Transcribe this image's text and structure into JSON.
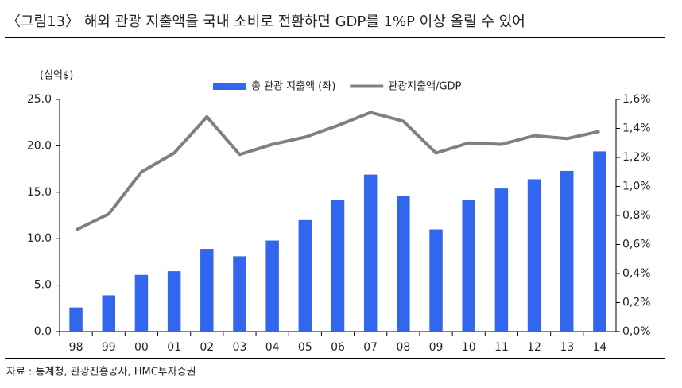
{
  "chart_data": {
    "type": "bar",
    "title": "〈그림13〉 해외 관광 지출액을 국내 소비로 전환하면 GDP를 1%P 이상 올릴 수 있어",
    "y_label": "(십억$)",
    "source": "자료 : 통계청, 관광진흥공사, HMC투자증권",
    "categories": [
      "98",
      "99",
      "00",
      "01",
      "02",
      "03",
      "04",
      "05",
      "06",
      "07",
      "08",
      "09",
      "10",
      "11",
      "12",
      "13",
      "14"
    ],
    "series": [
      {
        "name": "총 관광 지출액 (좌)",
        "color": "#3366ee",
        "type": "bar",
        "values": [
          2.6,
          3.9,
          6.1,
          6.5,
          8.9,
          8.1,
          9.8,
          12.0,
          14.2,
          16.9,
          14.6,
          11.0,
          14.2,
          15.4,
          16.4,
          17.3,
          19.4
        ]
      },
      {
        "name": "관광지출액/GDP",
        "color": "#808080",
        "type": "line",
        "axis": "y2",
        "values": [
          0.7,
          0.81,
          1.1,
          1.23,
          1.48,
          1.22,
          1.29,
          1.34,
          1.42,
          1.51,
          1.45,
          1.23,
          1.3,
          1.29,
          1.35,
          1.33,
          1.38
        ]
      }
    ],
    "ylim": [
      0,
      25
    ],
    "yticks": [
      {
        "value": 0,
        "label": "0.0"
      },
      {
        "value": 5,
        "label": "5.0"
      },
      {
        "value": 10,
        "label": "10.0"
      },
      {
        "value": 15,
        "label": "15.0"
      },
      {
        "value": 20,
        "label": "20.0"
      },
      {
        "value": 25,
        "label": "25.0"
      }
    ],
    "y2lim": [
      0,
      1.6
    ],
    "y2ticks": [
      {
        "value": 0,
        "label": "0,0%"
      },
      {
        "value": 0.2,
        "label": "0,2%"
      },
      {
        "value": 0.4,
        "label": "0,4%"
      },
      {
        "value": 0.6,
        "label": "0,6%"
      },
      {
        "value": 0.8,
        "label": "0,8%"
      },
      {
        "value": 1.0,
        "label": "1,0%"
      },
      {
        "value": 1.2,
        "label": "1,2%"
      },
      {
        "value": 1.4,
        "label": "1,4%"
      },
      {
        "value": 1.6,
        "label": "1,6%"
      }
    ],
    "grid": false
  }
}
